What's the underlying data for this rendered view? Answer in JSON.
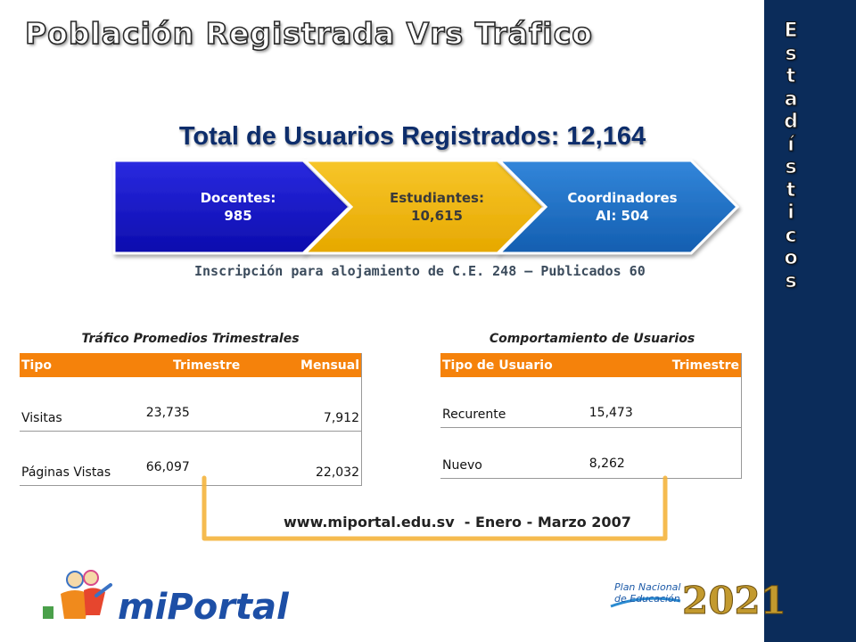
{
  "title": "Población Registrada Vrs Tráfico",
  "sidebar": {
    "letters": [
      "E",
      "s",
      "t",
      "a",
      "d",
      "í",
      "s",
      "t",
      "i",
      "c",
      "o",
      "s"
    ]
  },
  "total_label": "Total de Usuarios Registrados: 12,164",
  "chevrons": [
    {
      "line1": "Docentes:",
      "line2": "985",
      "color": "#1515c8"
    },
    {
      "line1": "Estudiantes:",
      "line2": "10,615",
      "color": "#f2b705"
    },
    {
      "line1": "Coordinadores",
      "line2": "AI: 504",
      "color": "#1e6fc4"
    }
  ],
  "inscription": "Inscripción para alojamiento de C.E. 248 – Publicados 60",
  "traffic_table": {
    "title": "Tráfico Promedios Trimestrales",
    "headers": [
      "Tipo",
      "Trimestre",
      "Mensual"
    ],
    "rows": [
      [
        "Visitas",
        "23,735",
        "7,912"
      ],
      [
        "Páginas Vistas",
        "66,097",
        "22,032"
      ]
    ]
  },
  "users_table": {
    "title": "Comportamiento de Usuarios",
    "headers": [
      "Tipo de Usuario",
      "Trimestre"
    ],
    "rows": [
      [
        "Recurente",
        "15,473"
      ],
      [
        "Nuevo",
        "8,262"
      ]
    ]
  },
  "footer": {
    "url": "www.miportal.edu.sv",
    "period": "- Enero - Marzo 2007"
  },
  "logos": {
    "left_text": "miPortal",
    "right_line1": "Plan Nacional",
    "right_line2": "de Educación",
    "right_year": "2021"
  }
}
